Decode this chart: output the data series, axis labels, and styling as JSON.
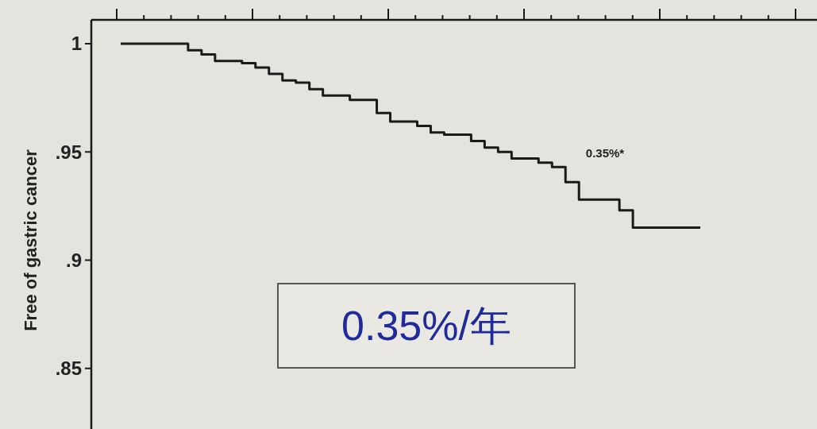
{
  "chart_data": {
    "type": "step",
    "ylabel": "Free of gastric cancer",
    "categories": [
      null,
      null,
      null,
      null,
      null,
      null,
      null,
      null,
      null,
      null,
      null,
      null,
      null,
      null,
      null,
      null,
      null,
      null,
      null,
      null,
      null,
      null,
      null,
      null,
      null,
      null,
      null,
      null,
      null,
      null,
      null,
      null,
      null,
      null,
      null,
      null,
      null,
      null,
      null,
      null,
      null,
      null,
      null,
      null
    ],
    "series": [
      {
        "color": "#1a1a1a",
        "values": [
          1.0,
          1.0,
          1.0,
          1.0,
          1.0,
          0.997,
          0.995,
          0.992,
          0.992,
          0.991,
          0.989,
          0.986,
          0.983,
          0.982,
          0.979,
          0.976,
          0.976,
          0.974,
          0.974,
          0.968,
          0.964,
          0.964,
          0.962,
          0.959,
          0.958,
          0.958,
          0.955,
          0.952,
          0.95,
          0.947,
          0.947,
          0.945,
          0.943,
          0.936,
          0.928,
          0.928,
          0.928,
          0.923,
          0.915,
          0.915,
          0.915,
          0.915,
          0.915,
          0.915
        ]
      }
    ],
    "ylim": [
      0.822,
      1.011
    ],
    "yticks": [
      {
        "value": 1,
        "label": "1"
      },
      {
        "value": 0.95,
        "label": ".95"
      },
      {
        "value": 0.9,
        "label": ".9"
      },
      {
        "value": 0.85,
        "label": ".85"
      }
    ],
    "tick_labels": "y",
    "line_style": "solid",
    "annotations": [
      "0.35%*",
      "0.35%/年"
    ]
  }
}
